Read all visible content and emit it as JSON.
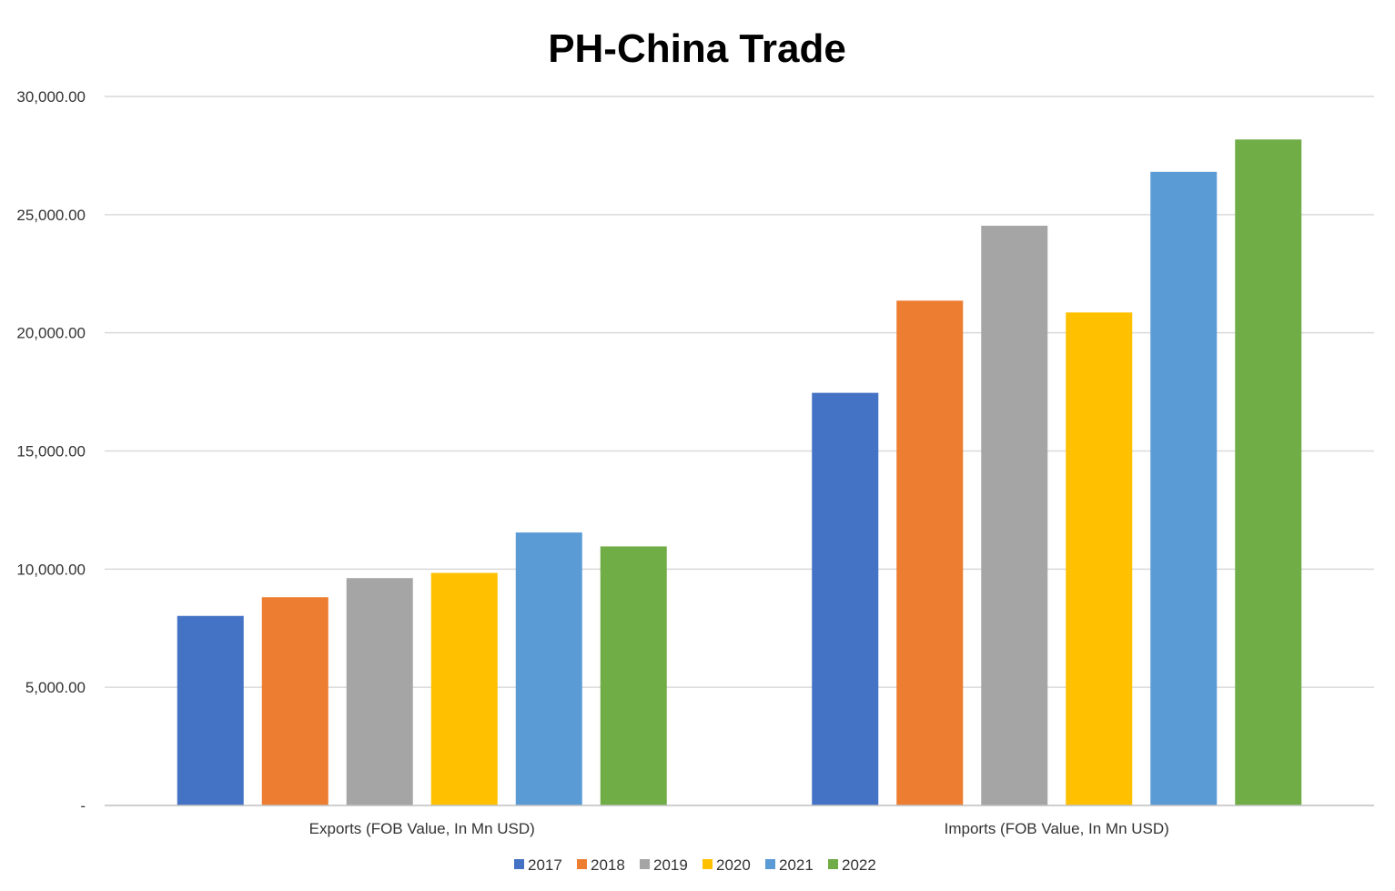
{
  "chart_data": {
    "type": "bar",
    "title": "PH-China Trade",
    "categories": [
      "Exports (FOB Value, In Mn USD)",
      "Imports (FOB Value, In Mn USD)"
    ],
    "series": [
      {
        "name": "2017",
        "color": "#4472C4",
        "values": [
          8020,
          17460
        ]
      },
      {
        "name": "2018",
        "color": "#ED7D31",
        "values": [
          8810,
          21360
        ]
      },
      {
        "name": "2019",
        "color": "#A5A5A5",
        "values": [
          9620,
          24530
        ]
      },
      {
        "name": "2020",
        "color": "#FFC000",
        "values": [
          9840,
          20860
        ]
      },
      {
        "name": "2021",
        "color": "#5B9BD5",
        "values": [
          11550,
          26810
        ]
      },
      {
        "name": "2022",
        "color": "#70AD47",
        "values": [
          10960,
          28180
        ]
      }
    ],
    "ylim": [
      0,
      30000
    ],
    "yticks": [
      0,
      5000,
      10000,
      15000,
      20000,
      25000,
      30000
    ],
    "ytick_labels": [
      "-",
      "5,000.00",
      "10,000.00",
      "15,000.00",
      "20,000.00",
      "25,000.00",
      "30,000.00"
    ],
    "xlabel": "",
    "ylabel": "",
    "grid": true,
    "legend_position": "bottom"
  }
}
